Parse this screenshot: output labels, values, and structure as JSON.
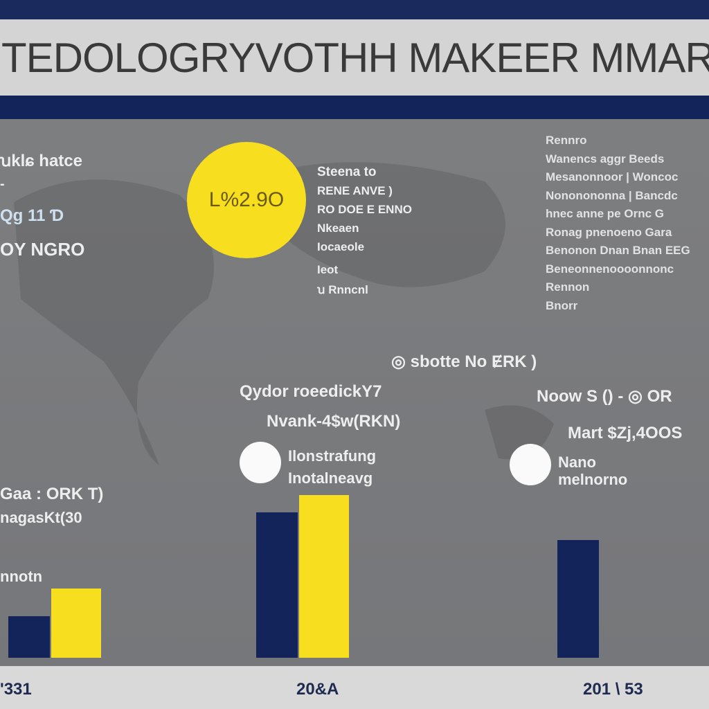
{
  "header": {
    "title": "TEDOLOGRYVOTHH MAKEER MMARKET"
  },
  "left_panel": {
    "line1": "ꭒklɕ hatce",
    "line2": "-",
    "line3": "Qg 11 Ɗ",
    "line4": "OY NGRO"
  },
  "highlight_circle": {
    "value": "L%2.9O",
    "color": "#f7de1e"
  },
  "circle_notes": [
    "Steena to",
    "RENE ANVE )",
    "RO DOE E ENNO",
    "Nkeaen",
    "Iocaeole",
    "Ieot",
    "ꭒ Rnncnl"
  ],
  "right_paragraph": [
    "Rennro",
    "Wanencs aggr Beeds",
    "Mesanonnoor | Woncoc",
    "Nononononna | Bancdc",
    "hnec anne pe Ornc G",
    "Ronag pnenoeno Gara",
    "Benonon Dnan Bnan EEG",
    "Beneonnenoooonnonc",
    "Rennon",
    "Bnorr"
  ],
  "annotations": {
    "center_top": "◎ sbotte No ɆRK )",
    "center_label1": "Qydor roeedickY7",
    "center_label2": "Nvank-4$w(RKN)",
    "right_label1": "Noow S () - ◎ OR",
    "right_label2": "Mart $Zj,4OOS",
    "left_label1": "Gaa : ORK T)",
    "left_label2": "nagasKt(30",
    "left_label3": "nnotn"
  },
  "legend_dots": [
    {
      "line1": "Ilonstrafung",
      "line2": "Inotalneavg"
    },
    {
      "line1": "Nano",
      "line2": "melnorno"
    }
  ],
  "chart_data": {
    "type": "bar",
    "categories": [
      "'331",
      "20&A",
      "201 \\ 53"
    ],
    "series": [
      {
        "color": "#13245a",
        "values": [
          60,
          210,
          170
        ]
      },
      {
        "color": "#f7de1e",
        "values": [
          100,
          235,
          null
        ]
      }
    ],
    "ylim": [
      0,
      250
    ],
    "grid": false
  },
  "colors": {
    "navy": "#13245a",
    "yellow": "#f7de1e",
    "panel": "#7b7c7e"
  }
}
